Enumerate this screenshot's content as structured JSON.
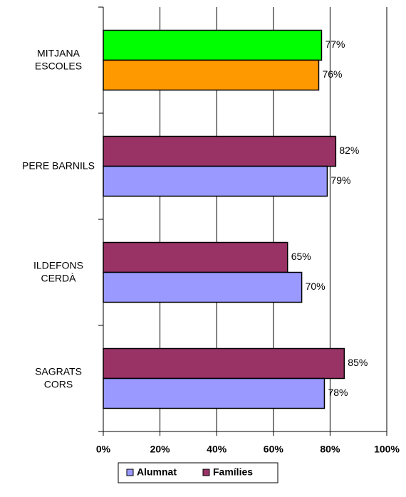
{
  "chart_data": {
    "type": "hbar",
    "categories": [
      "MITJANA\nESCOLES",
      "PERE BARNILS",
      "ILDEFONS\nCERDÀ",
      "SAGRATS\nCORS"
    ],
    "series": [
      {
        "name": "Famílies",
        "color": "#993366",
        "colors": [
          "#00ff00",
          "#993366",
          "#993366",
          "#993366"
        ],
        "values": [
          77,
          82,
          65,
          85
        ],
        "value_labels": [
          "77%",
          "82%",
          "65%",
          "85%"
        ]
      },
      {
        "name": "Alumnat",
        "color": "#9999ff",
        "colors": [
          "#ff9900",
          "#9999ff",
          "#9999ff",
          "#9999ff"
        ],
        "values": [
          76,
          79,
          70,
          78
        ],
        "value_labels": [
          "76%",
          "79%",
          "70%",
          "78%"
        ]
      }
    ],
    "xlim": [
      0,
      100
    ],
    "xticks": [
      {
        "value": 0,
        "label": "0%"
      },
      {
        "value": 20,
        "label": "20%"
      },
      {
        "value": 40,
        "label": "40%"
      },
      {
        "value": 60,
        "label": "60%"
      },
      {
        "value": 80,
        "label": "80%"
      },
      {
        "value": 100,
        "label": "100%"
      }
    ],
    "grid": true,
    "legend_order": [
      "Alumnat",
      "Famílies"
    ]
  }
}
